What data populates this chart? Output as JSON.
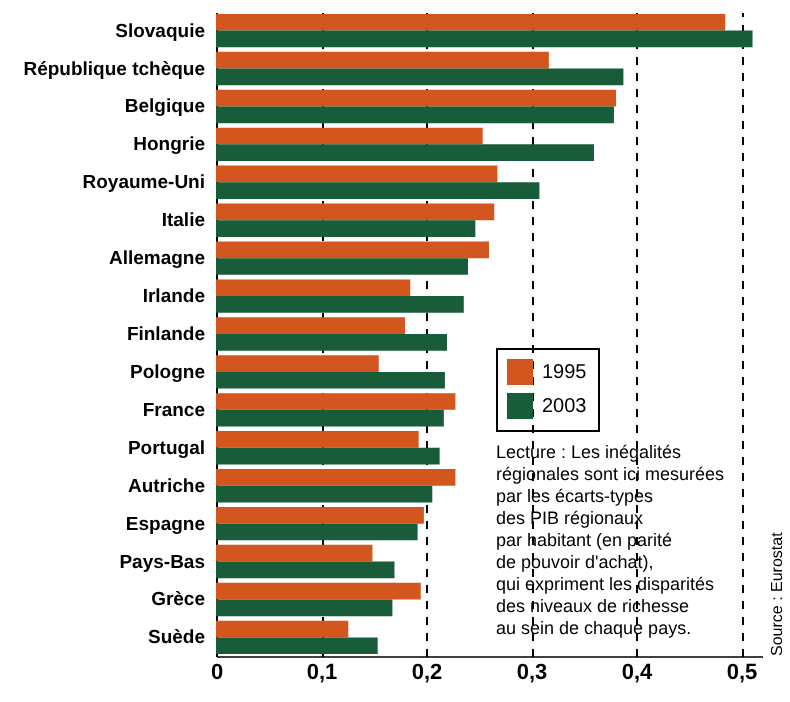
{
  "chart_data": {
    "type": "bar",
    "orientation": "horizontal",
    "categories": [
      "Slovaquie",
      "République tchèque",
      "Belgique",
      "Hongrie",
      "Royaume-Uni",
      "Italie",
      "Allemagne",
      "Irlande",
      "Finlande",
      "Pologne",
      "France",
      "Portugal",
      "Autriche",
      "Espagne",
      "Pays-Bas",
      "Grèce",
      "Suède"
    ],
    "series": [
      {
        "name": "1995",
        "color": "#d3561f",
        "values": [
          0.485,
          0.317,
          0.381,
          0.254,
          0.268,
          0.265,
          0.26,
          0.185,
          0.18,
          0.155,
          0.228,
          0.193,
          0.228,
          0.198,
          0.149,
          0.195,
          0.126
        ]
      },
      {
        "name": "2003",
        "color": "#195c3a",
        "values": [
          0.511,
          0.388,
          0.379,
          0.36,
          0.308,
          0.247,
          0.24,
          0.236,
          0.22,
          0.218,
          0.217,
          0.213,
          0.206,
          0.192,
          0.17,
          0.168,
          0.154
        ]
      }
    ],
    "xlim": [
      0,
      0.52
    ],
    "xticks": [
      {
        "value": 0,
        "label": "0"
      },
      {
        "value": 0.1,
        "label": "0,1"
      },
      {
        "value": 0.2,
        "label": "0,2"
      },
      {
        "value": 0.3,
        "label": "0,3"
      },
      {
        "value": 0.4,
        "label": "0,4"
      },
      {
        "value": 0.5,
        "label": "0,5"
      }
    ],
    "grid": "x",
    "legend": "right",
    "annotations": [
      "Lecture : Les inégalités\nrégionales sont ici mesurées\npar les écarts-types\ndes PIB régionaux\npar habitant (en parité\nde pouvoir d'achat),\nqui expriment les disparités\ndes niveaux de richesse\nau sein de chaque pays.",
      "Source : Eurostat"
    ]
  }
}
